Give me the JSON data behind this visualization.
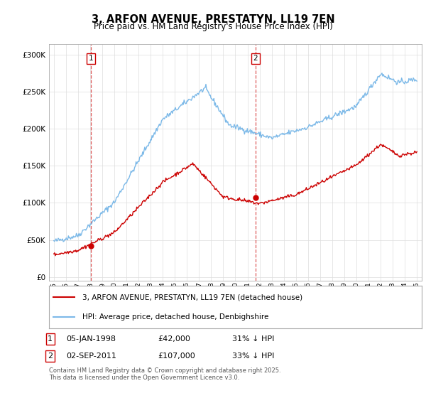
{
  "title": "3, ARFON AVENUE, PRESTATYN, LL19 7EN",
  "subtitle": "Price paid vs. HM Land Registry's House Price Index (HPI)",
  "yticks": [
    0,
    50000,
    100000,
    150000,
    200000,
    250000,
    300000
  ],
  "ytick_labels": [
    "£0",
    "£50K",
    "£100K",
    "£150K",
    "£200K",
    "£250K",
    "£300K"
  ],
  "hpi_color": "#7cb9e8",
  "price_color": "#cc0000",
  "vline_color": "#cc0000",
  "marker1_year": 1998.04,
  "marker1_price": 42000,
  "marker1_label": "1",
  "marker1_date": "05-JAN-1998",
  "marker1_amount": "£42,000",
  "marker1_hpi": "31% ↓ HPI",
  "marker2_year": 2011.67,
  "marker2_price": 107000,
  "marker2_label": "2",
  "marker2_date": "02-SEP-2011",
  "marker2_amount": "£107,000",
  "marker2_hpi": "33% ↓ HPI",
  "legend_line1": "3, ARFON AVENUE, PRESTATYN, LL19 7EN (detached house)",
  "legend_line2": "HPI: Average price, detached house, Denbighshire",
  "footnote1": "Contains HM Land Registry data © Crown copyright and database right 2025.",
  "footnote2": "This data is licensed under the Open Government Licence v3.0.",
  "background_color": "#ffffff"
}
